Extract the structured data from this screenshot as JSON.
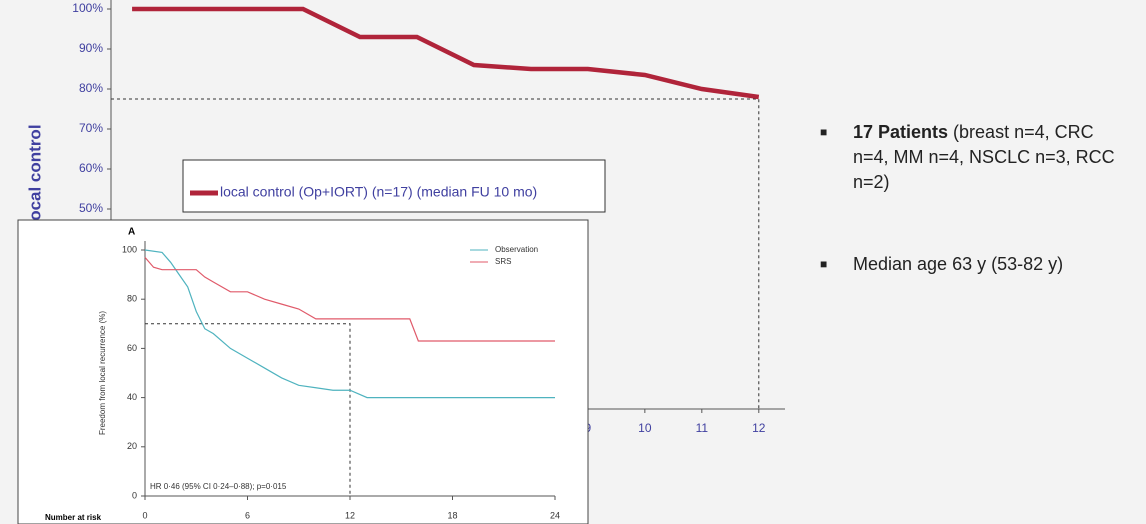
{
  "chart_data": [
    {
      "type": "line",
      "y_label": "local control",
      "x": [
        1,
        4,
        5,
        6,
        7,
        8,
        9,
        10,
        11,
        12
      ],
      "values": [
        100,
        100,
        93,
        93,
        86,
        85,
        85,
        83.5,
        80,
        78
      ],
      "color": "#b0243a",
      "series_name": "local control (Op+IORT) (n=17) (median FU 10 mo)",
      "xlim": [
        0.63,
        12.46
      ],
      "xticks": [
        9,
        10,
        11,
        12
      ],
      "ylim": [
        0,
        100
      ],
      "yticks": [
        {
          "value": 100,
          "label": "100%"
        },
        {
          "value": 90,
          "label": "90%"
        },
        {
          "value": 80,
          "label": "80%"
        },
        {
          "value": 70,
          "label": "70%"
        },
        {
          "value": 60,
          "label": "60%"
        },
        {
          "value": 50,
          "label": "50%"
        }
      ],
      "reference": {
        "x": 12,
        "y": 77.5
      }
    },
    {
      "type": "line",
      "title": "A",
      "y_label": "Freedom from local recurrence (%)",
      "annotation": "HR 0·46 (95% CI 0·24–0·88); p=0·015",
      "footer": "Number at risk",
      "series": [
        {
          "name": "Observation",
          "color": "#4fb3bf",
          "x": [
            0,
            1,
            1.5,
            2,
            2.5,
            3,
            3.5,
            4,
            5,
            6,
            7,
            8,
            9,
            10,
            11,
            12,
            13,
            18,
            24
          ],
          "values": [
            100,
            99,
            95,
            90,
            85,
            75,
            68,
            66,
            60,
            56,
            52,
            48,
            45,
            44,
            43,
            43,
            40,
            40,
            40
          ]
        },
        {
          "name": "SRS",
          "color": "#e05a6a",
          "x": [
            0,
            0.5,
            1,
            3,
            3.5,
            4,
            5,
            6,
            7,
            8,
            9,
            10,
            12,
            15.5,
            16,
            24
          ],
          "values": [
            97,
            93,
            92,
            92,
            89,
            87,
            83,
            83,
            80,
            78,
            76,
            72,
            72,
            72,
            63,
            63
          ]
        }
      ],
      "xlim": [
        0,
        24
      ],
      "xticks": [
        0,
        6,
        12,
        18,
        24
      ],
      "ylim": [
        0,
        100
      ],
      "yticks": [
        0,
        20,
        40,
        60,
        80,
        100
      ],
      "reference": {
        "x": 12,
        "y": 70
      }
    }
  ],
  "bullets": [
    {
      "bold": "17 Patients",
      "text": " (breast n=4, CRC n=4, MM n=4, NSCLC n=3, RCC n=2)"
    },
    {
      "text": "Median age 63 y (53-82 y)"
    }
  ]
}
